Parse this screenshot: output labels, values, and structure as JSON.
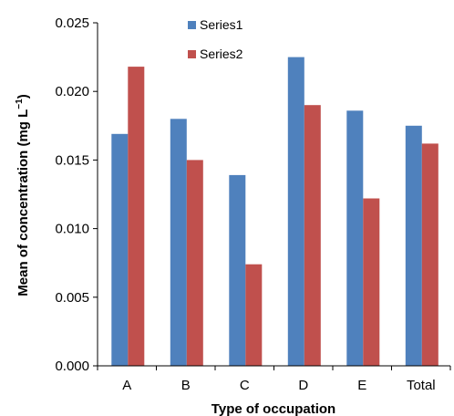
{
  "chart_data": {
    "type": "bar",
    "title": "",
    "xlabel": "Type of occupation",
    "ylabel_main": "Mean of concentration (mg L",
    "ylabel_sup": "−1",
    "ylabel_tail": ")",
    "categories": [
      "A",
      "B",
      "C",
      "D",
      "E",
      "Total"
    ],
    "series": [
      {
        "name": "Series1",
        "color": "#4f81bd",
        "values": [
          0.0169,
          0.018,
          0.0139,
          0.0225,
          0.0186,
          0.0175
        ]
      },
      {
        "name": "Series2",
        "color": "#c0504d",
        "values": [
          0.0218,
          0.015,
          0.0074,
          0.019,
          0.0122,
          0.0162
        ]
      }
    ],
    "ylim": [
      0,
      0.025
    ],
    "yticks": [
      "0.000",
      "0.005",
      "0.010",
      "0.015",
      "0.020",
      "0.025"
    ],
    "grid": false,
    "legend_position": "top-left"
  }
}
